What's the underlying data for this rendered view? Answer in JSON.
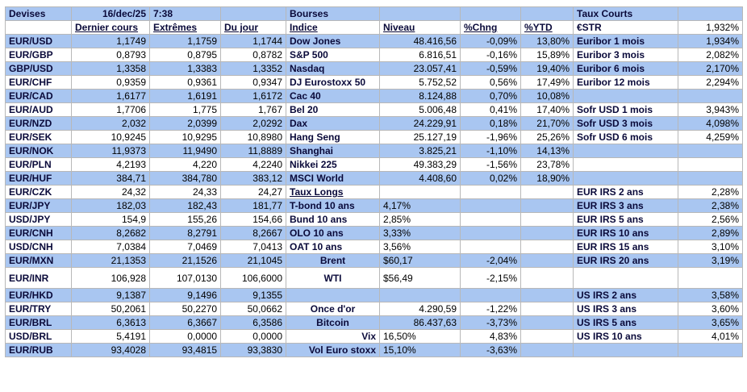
{
  "table": {
    "rows": [
      [
        "Devises",
        "16/dec/25",
        "7:38",
        null,
        "Bourses",
        null,
        null,
        null,
        "Taux Courts",
        null
      ],
      [
        null,
        "Dernier cours",
        "Extrêmes",
        "Du jour",
        "Indice",
        "Niveau",
        "%Chng",
        "%YTD",
        "€STR",
        "1,932%"
      ],
      [
        "EUR/USD",
        "1,1749",
        "1,1759",
        "1,1744",
        "Dow Jones",
        "48.416,56",
        "-0,09%",
        "13,80%",
        "Euribor 1 mois",
        "1,934%"
      ],
      [
        "EUR/GBP",
        "0,8793",
        "0,8795",
        "0,8782",
        "S&P 500",
        "6.816,51",
        "-0,16%",
        "15,89%",
        "Euribor 3 mois",
        "2,082%"
      ],
      [
        "GBP/USD",
        "1,3358",
        "1,3383",
        "1,3352",
        "Nasdaq",
        "23.057,41",
        "-0,59%",
        "19,40%",
        "Euribor 6 mois",
        "2,170%"
      ],
      [
        "EUR/CHF",
        "0,9359",
        "0,9361",
        "0,9347",
        "DJ Eurostoxx 50",
        "5.752,52",
        "0,56%",
        "17,49%",
        "Euribor 12 mois",
        "2,294%"
      ],
      [
        "EUR/CAD",
        "1,6177",
        "1,6191",
        "1,6172",
        "Cac 40",
        "8.124,88",
        "0,70%",
        "10,08%",
        null,
        null
      ],
      [
        "EUR/AUD",
        "1,7706",
        "1,775",
        "1,767",
        "Bel 20",
        "5.006,48",
        "0,41%",
        "17,40%",
        "Sofr USD 1 mois",
        "3,943%"
      ],
      [
        "EUR/NZD",
        "2,032",
        "2,0399",
        "2,0292",
        "Dax",
        "24.229,91",
        "0,18%",
        "21,70%",
        "Sofr USD 3 mois",
        "4,098%"
      ],
      [
        "EUR/SEK",
        "10,9245",
        "10,9295",
        "10,8980",
        "Hang Seng",
        "25.127,19",
        "-1,96%",
        "25,26%",
        "Sofr USD 6 mois",
        "4,259%"
      ],
      [
        "EUR/NOK",
        "11,9373",
        "11,9490",
        "11,8889",
        "Shanghai",
        "3.825,21",
        "-1,10%",
        "14,13%",
        null,
        null
      ],
      [
        "EUR/PLN",
        "4,2193",
        "4,220",
        "4,2240",
        "Nikkei 225",
        "49.383,29",
        "-1,56%",
        "23,78%",
        null,
        null
      ],
      [
        "EUR/HUF",
        "384,71",
        "384,780",
        "383,12",
        "MSCI World",
        "4.408,60",
        "0,02%",
        "18,90%",
        null,
        null
      ],
      [
        "EUR/CZK",
        "24,32",
        "24,33",
        "24,27",
        "Taux Longs",
        null,
        null,
        null,
        "EUR IRS 2 ans",
        "2,28%"
      ],
      [
        "EUR/JPY",
        "182,03",
        "182,43",
        "181,77",
        "T-bond 10 ans",
        "4,17%",
        null,
        null,
        "EUR IRS 3 ans",
        "2,38%"
      ],
      [
        "USD/JPY",
        "154,9",
        "155,26",
        "154,66",
        "Bund 10 ans",
        "2,85%",
        null,
        null,
        "EUR IRS 5 ans",
        "2,56%"
      ],
      [
        "EUR/CNH",
        "8,2682",
        "8,2791",
        "8,2667",
        "OLO 10 ans",
        "3,33%",
        null,
        null,
        "EUR IRS 10 ans",
        "2,89%"
      ],
      [
        "USD/CNH",
        "7,0384",
        "7,0469",
        "7,0413",
        "OAT 10 ans",
        "3,56%",
        null,
        null,
        "EUR IRS 15 ans",
        "3,10%"
      ],
      [
        "EUR/MXN",
        "21,1353",
        "21,1526",
        "21,1045",
        "Brent",
        "$60,17",
        "-2,04%",
        null,
        "EUR IRS 20 ans",
        "3,19%"
      ],
      [
        "EUR/INR",
        "106,928",
        "107,0130",
        "106,6000",
        "WTI",
        "$56,49",
        "-2,15%",
        null,
        null,
        null
      ],
      [
        "EUR/HKD",
        "9,1387",
        "9,1496",
        "9,1355",
        null,
        null,
        null,
        null,
        "US IRS 2 ans",
        "3,58%"
      ],
      [
        "EUR/TRY",
        "50,2061",
        "50,2270",
        "50,0662",
        "Once d'or",
        "4.290,59",
        "-1,22%",
        null,
        "US IRS 3 ans",
        "3,60%"
      ],
      [
        "EUR/BRL",
        "6,3613",
        "6,3667",
        "6,3586",
        "Bitcoin",
        "86.437,63",
        "-3,73%",
        null,
        "US IRS 5 ans",
        "3,65%"
      ],
      [
        "USD/BRL",
        "5,4191",
        "0,0000",
        "0,0000",
        "Vix",
        "16,50%",
        "4,83%",
        null,
        "US IRS 10 ans",
        "4,01%"
      ],
      [
        "EUR/RUB",
        "93,4028",
        "93,4815",
        "93,3830",
        "Vol Euro stoxx",
        "15,10%",
        "-3,63%",
        null,
        null,
        null
      ]
    ]
  }
}
